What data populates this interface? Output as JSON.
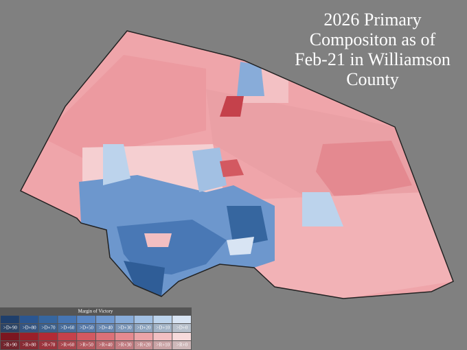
{
  "title_lines": [
    "2026 Primary",
    "Compositon as of",
    "Feb-21 in Williamson",
    "County"
  ],
  "legend": {
    "title": "Margin of Victory",
    "dem": {
      "labels": [
        ">D+90",
        ">D+80",
        ">D+70",
        ">D+60",
        ">D+50",
        ">D+40",
        ">D+30",
        ">D+20",
        ">D+10",
        ">D+0"
      ],
      "colors": [
        "#1f3f6b",
        "#2b5690",
        "#36669f",
        "#4675b3",
        "#5a87c5",
        "#6f98cf",
        "#88acd9",
        "#a2c0e3",
        "#bcd3ec",
        "#d8e4f3"
      ]
    },
    "rep": {
      "labels": [
        ">R+90",
        ">R+80",
        ">R+70",
        ">R+60",
        ">R+50",
        ">R+40",
        ">R+30",
        ">R+20",
        ">R+10",
        ">R+0"
      ],
      "colors": [
        "#7c1620",
        "#9a1f29",
        "#b32a35",
        "#c5414b",
        "#d35961",
        "#dc7178",
        "#e58a90",
        "#eca4a8",
        "#f2bfc2",
        "#f7dadb"
      ]
    }
  }
}
